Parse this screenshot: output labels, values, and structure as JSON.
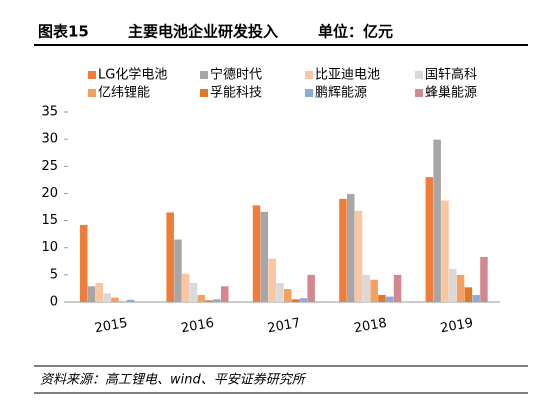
{
  "chart_data": {
    "type": "bar",
    "figure_label": "图表15",
    "title": "主要电池企业研发投入",
    "subtitle": "单位：亿元",
    "source": "资料来源：高工锂电、wind、平安证券研究所",
    "categories": [
      "2015",
      "2016",
      "2017",
      "2018",
      "2019"
    ],
    "series": [
      {
        "name": "LG化学电池",
        "color": "#f07c3a",
        "values": [
          14.2,
          16.5,
          17.8,
          19.0,
          23.0
        ]
      },
      {
        "name": "宁德时代",
        "color": "#a6a6a6",
        "values": [
          2.9,
          11.5,
          16.6,
          19.9,
          29.9
        ]
      },
      {
        "name": "比亚迪电池",
        "color": "#f9c6a4",
        "values": [
          3.5,
          5.2,
          8.0,
          16.8,
          18.7
        ]
      },
      {
        "name": "国轩高科",
        "color": "#d9d9d9",
        "values": [
          1.6,
          3.5,
          3.5,
          5.0,
          6.1
        ]
      },
      {
        "name": "亿纬锂能",
        "color": "#f4a062",
        "values": [
          0.8,
          1.3,
          2.4,
          4.1,
          5.0
        ]
      },
      {
        "name": "孚能科技",
        "color": "#e0782a",
        "values": [
          0.1,
          0.3,
          0.5,
          1.3,
          2.7
        ]
      },
      {
        "name": "鹏辉能源",
        "color": "#8eaadb",
        "values": [
          0.4,
          0.5,
          0.7,
          1.0,
          1.3
        ]
      },
      {
        "name": "蜂巢能源",
        "color": "#d4878f",
        "values": [
          0,
          2.9,
          5.0,
          5.0,
          8.3
        ]
      }
    ],
    "ylim": [
      0,
      35
    ],
    "yticks": [
      0,
      5,
      10,
      15,
      20,
      25,
      30,
      35
    ],
    "grid": false
  }
}
